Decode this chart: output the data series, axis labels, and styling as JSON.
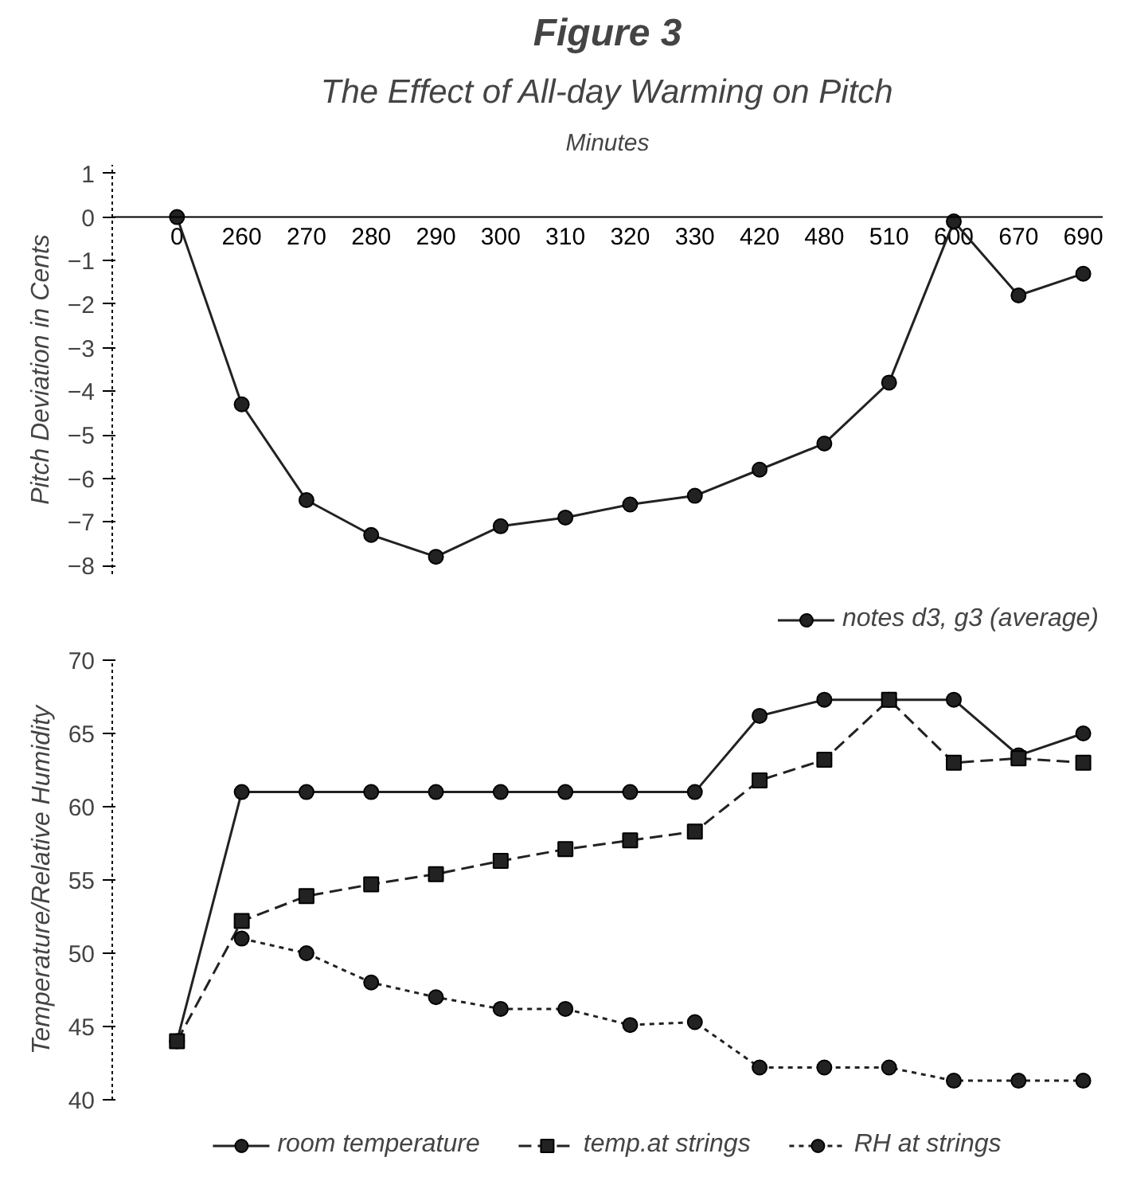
{
  "chart_data": [
    {
      "type": "line",
      "title": "Figure 3",
      "subtitle": "The Effect of All-day Warming on Pitch",
      "xlabel": "Minutes",
      "ylabel": "Pitch Deviation in Cents",
      "categories": [
        "0",
        "260",
        "270",
        "280",
        "290",
        "300",
        "310",
        "320",
        "330",
        "420",
        "480",
        "510",
        "600",
        "670",
        "690"
      ],
      "series": [
        {
          "name": "notes d3, g3 (average)",
          "color": "#222222",
          "marker": "circle",
          "line_style": "solid",
          "values": [
            0,
            -4.3,
            -6.5,
            -7.3,
            -7.8,
            -7.1,
            -6.9,
            -6.6,
            -6.4,
            -5.8,
            -5.2,
            -3.8,
            -0.1,
            -1.8,
            -1.3
          ]
        }
      ],
      "ylim": [
        -8.2,
        1.2
      ],
      "yticks": [
        1,
        0,
        -1,
        -2,
        -3,
        -4,
        -5,
        -6,
        -7,
        -8
      ],
      "grid": false,
      "legend": "bottom"
    },
    {
      "type": "line",
      "ylabel": "Temperature/Relative Humidity",
      "categories": [
        null,
        null,
        null,
        null,
        null,
        null,
        null,
        null,
        null,
        null,
        null,
        null,
        null,
        null,
        null
      ],
      "series": [
        {
          "name": "room temperature",
          "color": "#222222",
          "marker": "circle",
          "line_style": "solid",
          "values": [
            44,
            61,
            61,
            61,
            61,
            61,
            61,
            61,
            61,
            66.2,
            67.3,
            67.3,
            67.3,
            63.5,
            65
          ]
        },
        {
          "name": "temp.at strings",
          "color": "#222222",
          "marker": "square",
          "line_style": "dashed",
          "values": [
            44,
            52.2,
            53.9,
            54.7,
            55.4,
            56.3,
            57.1,
            57.7,
            58.3,
            61.8,
            63.2,
            67.3,
            63,
            63.3,
            63
          ]
        },
        {
          "name": "RH at strings",
          "color": "#222222",
          "marker": "circle",
          "line_style": "dotted",
          "values": [
            null,
            51,
            50,
            48,
            47,
            46.2,
            46.2,
            45.1,
            45.3,
            42.2,
            42.2,
            42.2,
            41.3,
            41.3,
            41.3
          ]
        }
      ],
      "ylim": [
        40,
        70
      ],
      "yticks": [
        40,
        45,
        50,
        55,
        60,
        65,
        70
      ],
      "grid": false,
      "legend": "bottom"
    }
  ]
}
